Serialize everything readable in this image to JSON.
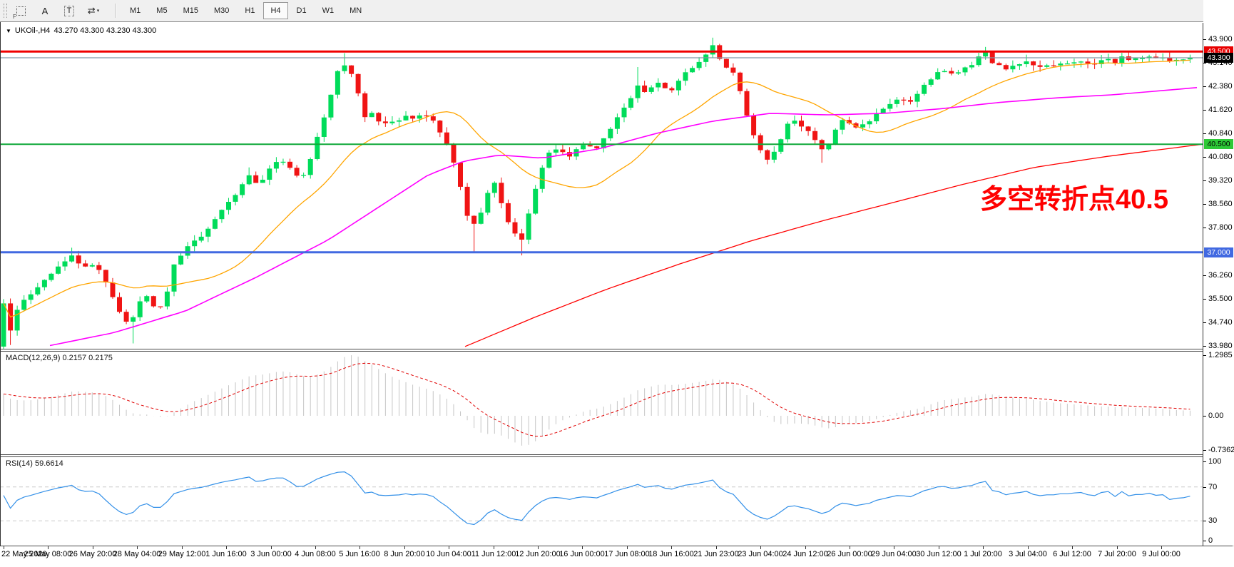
{
  "toolbar": {
    "tools": [
      {
        "name": "chart-grid-icon",
        "type": "dotbox",
        "label": "F"
      },
      {
        "name": "text-label-icon",
        "type": "text",
        "label": "A"
      },
      {
        "name": "text-box-icon",
        "type": "dashbox",
        "label": "T"
      },
      {
        "name": "arrows-tool-icon",
        "type": "arrows",
        "label": "⇄",
        "caret": "▾"
      }
    ],
    "timeframes": [
      "M1",
      "M5",
      "M15",
      "M30",
      "H1",
      "H4",
      "D1",
      "W1",
      "MN"
    ],
    "active_timeframe": "H4"
  },
  "chart": {
    "title_symbol": "UKOil-,H4",
    "title_ohlc": "43.270 43.300 43.230 43.300",
    "dropdown_icon": "▼",
    "annotation": {
      "text": "多空转折点40.5",
      "color": "#FF0000"
    }
  },
  "price_scale": {
    "ticks": [
      "43.900",
      "43.140",
      "42.380",
      "41.620",
      "40.840",
      "40.080",
      "39.320",
      "38.560",
      "37.800",
      "36.260",
      "35.500",
      "34.740",
      "33.980"
    ],
    "badges": [
      {
        "label": "43.500",
        "price": 43.5,
        "bg": "#E80000",
        "fg": "#FFFFFF"
      },
      {
        "label": "43.300",
        "price": 43.3,
        "bg": "#000000",
        "fg": "#FFFFFF"
      },
      {
        "label": "40.500",
        "price": 40.5,
        "bg": "#2DC937",
        "fg": "#000000"
      },
      {
        "label": "37.000",
        "price": 37.0,
        "bg": "#4169E1",
        "fg": "#FFFFFF"
      }
    ]
  },
  "macd_panel": {
    "name": "MACD(12,26,9)",
    "values": "0.2157 0.2175",
    "scale": [
      "1.2985",
      "0.00",
      "-0.7362"
    ]
  },
  "rsi_panel": {
    "name": "RSI(14)",
    "value": "59.6614",
    "scale": [
      "100",
      "70",
      "30",
      "0"
    ]
  },
  "time_axis": {
    "labels": [
      "22 May 2020",
      "25 May 08:00",
      "26 May 20:00",
      "28 May 04:00",
      "29 May 12:00",
      "1 Jun 16:00",
      "3 Jun 00:00",
      "4 Jun 08:00",
      "5 Jun 16:00",
      "8 Jun 20:00",
      "10 Jun 04:00",
      "11 Jun 12:00",
      "12 Jun 20:00",
      "16 Jun 00:00",
      "17 Jun 08:00",
      "18 Jun 16:00",
      "21 Jun 23:00",
      "23 Jun 04:00",
      "24 Jun 12:00",
      "26 Jun 00:00",
      "29 Jun 04:00",
      "30 Jun 12:00",
      "1 Jul 20:00",
      "3 Jul 04:00",
      "6 Jul 12:00",
      "7 Jul 20:00",
      "9 Jul 00:00"
    ]
  },
  "chart_data": {
    "type": "candlestick",
    "symbol": "UKOil-",
    "timeframe": "H4",
    "current_ohlc": {
      "open": 43.27,
      "high": 43.3,
      "low": 43.23,
      "close": 43.3
    },
    "price_range": [
      33.98,
      44.05
    ],
    "up_color": "#00DC5A",
    "down_color": "#F01414",
    "horizontal_lines": [
      {
        "price": 43.5,
        "color": "#F00000",
        "width": 3
      },
      {
        "price": 40.5,
        "color": "#0FA839",
        "width": 2
      },
      {
        "price": 37.0,
        "color": "#4169E1",
        "width": 3
      }
    ],
    "current_price_line": {
      "price": 43.3,
      "color": "#8296A8"
    },
    "price_path": [
      [
        5,
        35.4
      ],
      [
        12,
        34.3
      ],
      [
        22,
        35.1
      ],
      [
        40,
        35.6
      ],
      [
        55,
        35.9
      ],
      [
        70,
        36.3
      ],
      [
        85,
        36.6
      ],
      [
        100,
        36.9
      ],
      [
        108,
        36.7
      ],
      [
        120,
        36.5
      ],
      [
        132,
        36.6
      ],
      [
        145,
        36.2
      ],
      [
        158,
        35.6
      ],
      [
        170,
        35.0
      ],
      [
        182,
        34.55
      ],
      [
        192,
        35.2
      ],
      [
        202,
        35.7
      ],
      [
        212,
        35.4
      ],
      [
        222,
        35.1
      ],
      [
        232,
        35.45
      ],
      [
        242,
        36.5
      ],
      [
        252,
        36.9
      ],
      [
        265,
        37.2
      ],
      [
        280,
        37.5
      ],
      [
        295,
        37.9
      ],
      [
        310,
        38.3
      ],
      [
        325,
        38.7
      ],
      [
        338,
        39.2
      ],
      [
        350,
        39.5
      ],
      [
        362,
        39.2
      ],
      [
        375,
        39.6
      ],
      [
        388,
        40.0
      ],
      [
        400,
        39.9
      ],
      [
        412,
        39.6
      ],
      [
        424,
        39.4
      ],
      [
        436,
        40.1
      ],
      [
        448,
        40.9
      ],
      [
        460,
        41.8
      ],
      [
        472,
        42.8
      ],
      [
        481,
        43.15
      ],
      [
        490,
        42.9
      ],
      [
        500,
        42.3
      ],
      [
        510,
        41.35
      ],
      [
        522,
        41.55
      ],
      [
        534,
        41.1
      ],
      [
        546,
        41.3
      ],
      [
        558,
        41.2
      ],
      [
        570,
        41.4
      ],
      [
        582,
        41.3
      ],
      [
        594,
        41.5
      ],
      [
        606,
        41.3
      ],
      [
        618,
        40.9
      ],
      [
        630,
        40.3
      ],
      [
        642,
        39.5
      ],
      [
        654,
        38.3
      ],
      [
        662,
        37.8
      ],
      [
        672,
        38.2
      ],
      [
        682,
        38.8
      ],
      [
        692,
        39.3
      ],
      [
        702,
        38.7
      ],
      [
        712,
        38.0
      ],
      [
        722,
        37.6
      ],
      [
        732,
        37.45
      ],
      [
        742,
        38.3
      ],
      [
        752,
        39.2
      ],
      [
        762,
        39.8
      ],
      [
        774,
        40.4
      ],
      [
        786,
        40.3
      ],
      [
        798,
        40.1
      ],
      [
        810,
        40.4
      ],
      [
        822,
        40.6
      ],
      [
        834,
        40.2
      ],
      [
        846,
        40.7
      ],
      [
        858,
        41.1
      ],
      [
        870,
        41.5
      ],
      [
        882,
        41.9
      ],
      [
        894,
        42.35
      ],
      [
        906,
        42.1
      ],
      [
        918,
        42.5
      ],
      [
        930,
        42.4
      ],
      [
        942,
        42.2
      ],
      [
        954,
        42.7
      ],
      [
        966,
        42.9
      ],
      [
        978,
        43.1
      ],
      [
        990,
        43.4
      ],
      [
        1000,
        43.7
      ],
      [
        1008,
        43.3
      ],
      [
        1018,
        43.0
      ],
      [
        1028,
        42.8
      ],
      [
        1038,
        42.2
      ],
      [
        1048,
        41.4
      ],
      [
        1058,
        40.7
      ],
      [
        1068,
        40.2
      ],
      [
        1078,
        40.0
      ],
      [
        1088,
        40.3
      ],
      [
        1098,
        40.9
      ],
      [
        1108,
        41.4
      ],
      [
        1120,
        41.2
      ],
      [
        1132,
        40.9
      ],
      [
        1144,
        40.6
      ],
      [
        1156,
        40.25
      ],
      [
        1168,
        40.8
      ],
      [
        1180,
        41.3
      ],
      [
        1192,
        41.2
      ],
      [
        1204,
        41.0
      ],
      [
        1216,
        41.2
      ],
      [
        1228,
        41.5
      ],
      [
        1240,
        41.7
      ],
      [
        1252,
        41.9
      ],
      [
        1264,
        42.0
      ],
      [
        1276,
        41.85
      ],
      [
        1288,
        42.2
      ],
      [
        1300,
        42.5
      ],
      [
        1312,
        42.8
      ],
      [
        1324,
        42.9
      ],
      [
        1336,
        42.7
      ],
      [
        1348,
        43.0
      ],
      [
        1360,
        43.05
      ],
      [
        1372,
        43.3
      ],
      [
        1382,
        43.5
      ],
      [
        1392,
        43.15
      ],
      [
        1404,
        42.95
      ],
      [
        1416,
        43.0
      ],
      [
        1428,
        43.1
      ],
      [
        1440,
        43.2
      ],
      [
        1452,
        43.0
      ],
      [
        1464,
        42.95
      ],
      [
        1476,
        43.1
      ],
      [
        1488,
        43.05
      ],
      [
        1500,
        43.1
      ],
      [
        1512,
        43.2
      ],
      [
        1524,
        43.1
      ],
      [
        1536,
        43.15
      ],
      [
        1548,
        43.25
      ],
      [
        1560,
        43.15
      ],
      [
        1572,
        43.3
      ],
      [
        1584,
        43.2
      ],
      [
        1596,
        43.25
      ],
      [
        1608,
        43.3
      ],
      [
        1620,
        43.27
      ],
      [
        1640,
        43.25
      ],
      [
        1656,
        43.3
      ],
      [
        1668,
        43.3
      ]
    ],
    "wick_spikes": [
      [
        5,
        "low",
        33.99
      ],
      [
        12,
        "low",
        34.0
      ],
      [
        100,
        "high",
        37.15
      ],
      [
        182,
        "low",
        34.05
      ],
      [
        350,
        "high",
        39.75
      ],
      [
        481,
        "high",
        43.45
      ],
      [
        662,
        "low",
        37.0
      ],
      [
        732,
        "low",
        36.9
      ],
      [
        894,
        "high",
        43.0
      ],
      [
        1000,
        "high",
        43.95
      ],
      [
        1078,
        "low",
        39.85
      ],
      [
        1156,
        "low",
        39.9
      ],
      [
        1382,
        "high",
        43.65
      ],
      [
        1440,
        "high",
        43.4
      ]
    ],
    "ma_fast": {
      "type": "SMA",
      "period": 20,
      "color": "#FFA500"
    },
    "ma_mid": {
      "color": "#FF00FF",
      "points": [
        [
          70,
          33.98
        ],
        [
          160,
          34.4
        ],
        [
          260,
          35.1
        ],
        [
          360,
          36.2
        ],
        [
          460,
          37.4
        ],
        [
          540,
          38.6
        ],
        [
          600,
          39.5
        ],
        [
          650,
          39.95
        ],
        [
          700,
          40.15
        ],
        [
          760,
          40.05
        ],
        [
          840,
          40.35
        ],
        [
          920,
          40.85
        ],
        [
          1000,
          41.25
        ],
        [
          1080,
          41.5
        ],
        [
          1160,
          41.45
        ],
        [
          1240,
          41.5
        ],
        [
          1320,
          41.65
        ],
        [
          1400,
          41.85
        ],
        [
          1480,
          42.0
        ],
        [
          1560,
          42.1
        ],
        [
          1686,
          42.35
        ]
      ]
    },
    "ma_slow": {
      "color": "#FF0000",
      "points": [
        [
          652,
          33.95
        ],
        [
          750,
          34.9
        ],
        [
          850,
          35.8
        ],
        [
          950,
          36.6
        ],
        [
          1050,
          37.35
        ],
        [
          1150,
          38.0
        ],
        [
          1250,
          38.6
        ],
        [
          1350,
          39.2
        ],
        [
          1450,
          39.75
        ],
        [
          1550,
          40.1
        ],
        [
          1686,
          40.5
        ]
      ]
    },
    "macd": {
      "fast": 12,
      "slow": 26,
      "signal": 9,
      "display_values": [
        0.2157,
        0.2175
      ],
      "scale_max": 1.2985,
      "scale_min": -0.7362,
      "histogram_color": "#C6C6C6",
      "signal_color": "#E00000"
    },
    "rsi": {
      "period": 14,
      "value": 59.6614,
      "levels": [
        70,
        30
      ],
      "color": "#3390E8",
      "level_color": "#C9C9C9"
    }
  }
}
